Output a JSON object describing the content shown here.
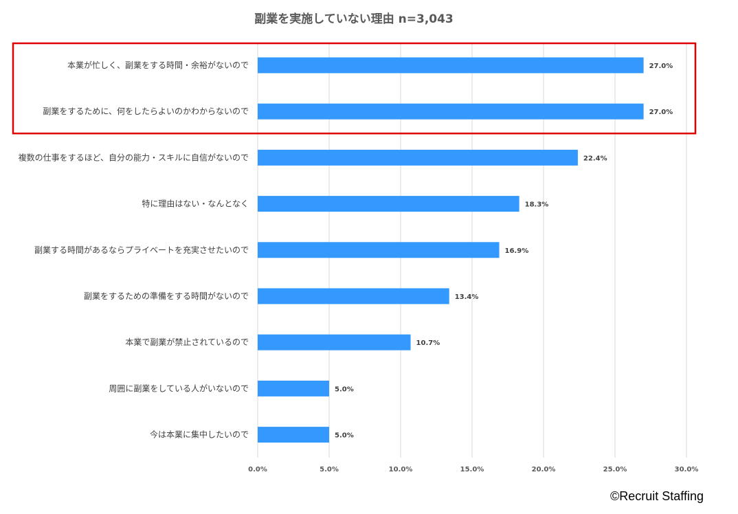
{
  "chart_data": {
    "type": "bar",
    "orientation": "horizontal",
    "title": "副業を実施していない理由 n=3,043",
    "categories": [
      "本業が忙しく、副業をする時間・余裕がないので",
      "副業をするために、何をしたらよいのかわからないので",
      "複数の仕事をするほど、自分の能力・スキルに自信がないので",
      "特に理由はない・なんとなく",
      "副業する時間があるならプライベートを充実させたいので",
      "副業をするための準備をする時間がないので",
      "本業で副業が禁止されているので",
      "周囲に副業をしている人がいないので",
      "今は本業に集中したいので"
    ],
    "values": [
      27.0,
      27.0,
      22.4,
      18.3,
      16.9,
      13.4,
      10.7,
      5.0,
      5.0
    ],
    "data_labels": [
      "27.0%",
      "27.0%",
      "22.4%",
      "18.3%",
      "16.9%",
      "13.4%",
      "10.7%",
      "5.0%",
      "5.0%"
    ],
    "xlim": [
      0,
      30
    ],
    "x_ticks": [
      0,
      5,
      10,
      15,
      20,
      25,
      30
    ],
    "x_tick_labels": [
      "0.0%",
      "5.0%",
      "10.0%",
      "15.0%",
      "20.0%",
      "25.0%",
      "30.0%"
    ],
    "grid": true,
    "bar_color": "#3399ff",
    "highlight": {
      "category_indices": [
        0,
        1
      ],
      "color": "#e00000"
    }
  },
  "credit": "©Recruit Staffing"
}
